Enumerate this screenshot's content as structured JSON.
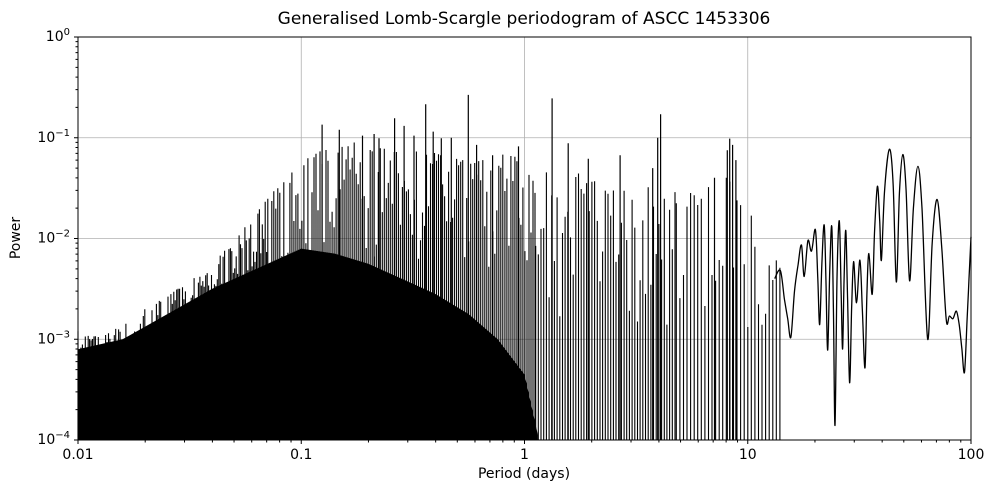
{
  "chart_data": {
    "type": "line",
    "title": "Generalised Lomb-Scargle periodogram of ASCC 1453306",
    "xlabel": "Period (days)",
    "ylabel": "Power",
    "xscale": "log",
    "yscale": "log",
    "xlim": [
      0.01,
      100
    ],
    "ylim": [
      0.0001,
      1
    ],
    "x_ticks": [
      0.01,
      0.1,
      1,
      10,
      100
    ],
    "x_tick_labels": [
      "0.01",
      "0.1",
      "1",
      "10",
      "100"
    ],
    "y_tick_exponents": [
      0,
      -1,
      -2,
      -3,
      -4
    ],
    "grid": true,
    "grid_color": "#b0b0b0",
    "line_color": "#000000",
    "background_color": "#ffffff",
    "legend": "none",
    "major_peaks": [
      {
        "period": 0.124,
        "power": 0.135
      },
      {
        "period": 0.148,
        "power": 0.12
      },
      {
        "period": 0.188,
        "power": 0.105
      },
      {
        "period": 0.212,
        "power": 0.109
      },
      {
        "period": 0.223,
        "power": 0.099
      },
      {
        "period": 0.262,
        "power": 0.156
      },
      {
        "period": 0.289,
        "power": 0.131
      },
      {
        "period": 0.32,
        "power": 0.105
      },
      {
        "period": 0.361,
        "power": 0.215
      },
      {
        "period": 0.39,
        "power": 0.115
      },
      {
        "period": 0.424,
        "power": 0.099
      },
      {
        "period": 0.47,
        "power": 0.1
      },
      {
        "period": 0.56,
        "power": 0.266
      },
      {
        "period": 0.61,
        "power": 0.085
      },
      {
        "period": 0.72,
        "power": 0.067
      },
      {
        "period": 0.94,
        "power": 0.082
      },
      {
        "period": 1.33,
        "power": 0.246
      },
      {
        "period": 1.57,
        "power": 0.088
      },
      {
        "period": 1.93,
        "power": 0.062
      },
      {
        "period": 2.68,
        "power": 0.067
      },
      {
        "period": 3.75,
        "power": 0.05
      },
      {
        "period": 3.95,
        "power": 0.1
      },
      {
        "period": 4.07,
        "power": 0.171
      },
      {
        "period": 7.1,
        "power": 0.04
      },
      {
        "period": 8.1,
        "power": 0.075
      },
      {
        "period": 8.3,
        "power": 0.098
      },
      {
        "period": 8.55,
        "power": 0.085
      },
      {
        "period": 8.85,
        "power": 0.06
      }
    ],
    "noise_envelope_log10": [
      [
        -2.0,
        -2.92
      ],
      [
        -1.9,
        -2.96
      ],
      [
        -1.8,
        -2.85
      ],
      [
        -1.7,
        -2.7
      ],
      [
        -1.6,
        -2.54
      ],
      [
        -1.5,
        -2.42
      ],
      [
        -1.4,
        -2.24
      ],
      [
        -1.3,
        -2.0
      ],
      [
        -1.2,
        -1.74
      ],
      [
        -1.1,
        -1.44
      ],
      [
        -1.0,
        -1.22
      ],
      [
        -0.9,
        -1.1
      ],
      [
        -0.8,
        -1.0
      ],
      [
        -0.7,
        -1.05
      ],
      [
        -0.6,
        -1.12
      ],
      [
        -0.5,
        -1.1
      ],
      [
        -0.4,
        -1.14
      ],
      [
        -0.3,
        -1.2
      ],
      [
        -0.2,
        -1.22
      ],
      [
        -0.1,
        -1.15
      ],
      [
        0.0,
        -1.2
      ],
      [
        0.1,
        -1.32
      ],
      [
        0.2,
        -1.28
      ],
      [
        0.3,
        -1.4
      ],
      [
        0.4,
        -1.5
      ],
      [
        0.5,
        -1.52
      ],
      [
        0.6,
        -1.45
      ],
      [
        0.7,
        -1.55
      ],
      [
        0.8,
        -1.5
      ],
      [
        0.9,
        -1.35
      ],
      [
        0.95,
        -1.55
      ],
      [
        1.0,
        -1.62
      ],
      [
        1.05,
        -1.8
      ],
      [
        1.1,
        -2.0
      ],
      [
        1.15,
        -2.3
      ]
    ],
    "solid_base_log10": [
      [
        -2.0,
        -3.1
      ],
      [
        -1.8,
        -3.0
      ],
      [
        -1.6,
        -2.75
      ],
      [
        -1.4,
        -2.5
      ],
      [
        -1.2,
        -2.3
      ],
      [
        -1.0,
        -2.1
      ],
      [
        -0.85,
        -2.15
      ],
      [
        -0.7,
        -2.25
      ],
      [
        -0.55,
        -2.4
      ],
      [
        -0.4,
        -2.55
      ],
      [
        -0.25,
        -2.75
      ],
      [
        -0.12,
        -3.0
      ],
      [
        0.0,
        -3.35
      ],
      [
        0.06,
        -3.95
      ]
    ],
    "smooth_branch": [
      [
        13.2,
        0.004
      ],
      [
        14.0,
        0.0048
      ],
      [
        14.6,
        0.0025
      ],
      [
        15.1,
        0.0016
      ],
      [
        15.6,
        0.00105
      ],
      [
        16.2,
        0.003
      ],
      [
        16.8,
        0.0055
      ],
      [
        17.4,
        0.0086
      ],
      [
        17.9,
        0.0042
      ],
      [
        18.6,
        0.0095
      ],
      [
        19.3,
        0.0075
      ],
      [
        20.1,
        0.0122
      ],
      [
        20.6,
        0.004
      ],
      [
        21.0,
        0.0014
      ],
      [
        21.5,
        0.006
      ],
      [
        22.0,
        0.0136
      ],
      [
        22.4,
        0.004
      ],
      [
        22.8,
        0.00078
      ],
      [
        23.3,
        0.005
      ],
      [
        23.8,
        0.0131
      ],
      [
        24.2,
        0.002
      ],
      [
        24.6,
        0.00014
      ],
      [
        25.1,
        0.004
      ],
      [
        25.7,
        0.015
      ],
      [
        26.2,
        0.003
      ],
      [
        26.6,
        0.0008
      ],
      [
        27.0,
        0.004
      ],
      [
        27.5,
        0.012
      ],
      [
        28.0,
        0.0025
      ],
      [
        28.6,
        0.00037
      ],
      [
        29.2,
        0.002
      ],
      [
        29.8,
        0.0059
      ],
      [
        30.7,
        0.0023
      ],
      [
        31.8,
        0.0061
      ],
      [
        32.6,
        0.002
      ],
      [
        33.5,
        0.00052
      ],
      [
        34.2,
        0.003
      ],
      [
        34.9,
        0.0071
      ],
      [
        36.1,
        0.0028
      ],
      [
        37.0,
        0.012
      ],
      [
        38.1,
        0.033
      ],
      [
        39.0,
        0.015
      ],
      [
        39.7,
        0.0061
      ],
      [
        41.0,
        0.03
      ],
      [
        43.1,
        0.077
      ],
      [
        44.8,
        0.035
      ],
      [
        46.3,
        0.0037
      ],
      [
        47.8,
        0.028
      ],
      [
        49.5,
        0.068
      ],
      [
        51.2,
        0.03
      ],
      [
        53.1,
        0.0038
      ],
      [
        55.2,
        0.02
      ],
      [
        57.8,
        0.052
      ],
      [
        60.3,
        0.02
      ],
      [
        64.0,
        0.001
      ],
      [
        67.0,
        0.009
      ],
      [
        70.5,
        0.0244
      ],
      [
        74.0,
        0.008
      ],
      [
        77.5,
        0.00155
      ],
      [
        80.0,
        0.0017
      ],
      [
        83.0,
        0.0016
      ],
      [
        86.0,
        0.0019
      ],
      [
        88.5,
        0.0014
      ],
      [
        91.0,
        0.0008
      ],
      [
        93.5,
        0.00047
      ],
      [
        96.0,
        0.0015
      ],
      [
        98.0,
        0.004
      ],
      [
        100,
        0.0104
      ]
    ]
  }
}
